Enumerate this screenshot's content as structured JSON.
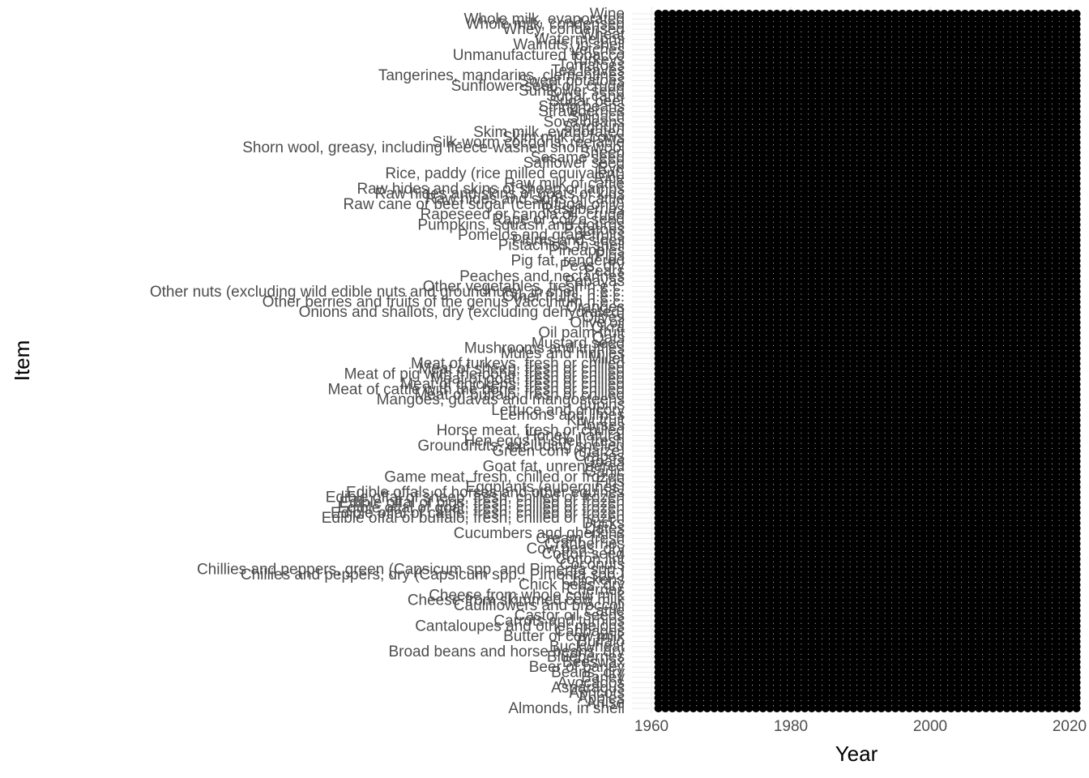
{
  "chart_data": {
    "type": "scatter",
    "title": "",
    "xlabel": "Year",
    "ylabel": "Item",
    "xlim": [
      1961,
      2021
    ],
    "x_ticks": [
      "1960",
      "1980",
      "2000",
      "2020"
    ],
    "grid": true,
    "legend": "none",
    "point_color": "#000000",
    "grid_color": "#ebebeb",
    "categories": [
      "Almonds, in shell",
      "Anise",
      "Apples",
      "Apricots",
      "Asparagus",
      "Avocados",
      "Barley",
      "Beans, dry",
      "Beer of barley",
      "Beeswax",
      "Blueberries",
      "Broad beans and horse beans, dry",
      "Buckwheat",
      "Buffalo",
      "Butter of cow milk",
      "Cabbages",
      "Cantaloupes and other melons",
      "Carrots and turnips",
      "Castor oil seeds",
      "Cattle",
      "Cauliflowers and broccoli",
      "Cheese from skimmed cow milk",
      "Cheese from whole cow milk",
      "Cherries",
      "Chick peas, dry",
      "Chickens",
      "Chillies and peppers, dry (Capsicum spp., Pimenta spp.)",
      "Chillies and peppers, green (Capsicum spp. and Pimenta spp.)",
      "Coconuts",
      "Cotton lint",
      "Cotton seed",
      "Cow peas, dry",
      "Cranberries",
      "Cream, fresh",
      "Cucumbers and gherkins",
      "Dates",
      "Ducks",
      "Edible offal of buffalo, fresh, chilled or frozen",
      "Edible offal of cattle, fresh, chilled or frozen",
      "Edible offal of goat, fresh, chilled or frozen",
      "Edible offal of pigs, fresh, chilled or frozen",
      "Edible offal of sheep, fresh, chilled or frozen",
      "Edible offals of horses and other equines",
      "Eggplants (aubergines)",
      "Figs",
      "Game meat, fresh, chilled or frozen",
      "Garlic",
      "Goat fat, unrendered",
      "Goats",
      "Grapes",
      "Green corn (maize)",
      "Groundnuts, excluding shelled",
      "Hen eggs in shell, fresh",
      "Honey, natural",
      "Horse meat, fresh or chilled",
      "Horses",
      "Kiwi fruit",
      "Lemons and limes",
      "Lettuce and chicory",
      "Lupins",
      "Mangoes, guavas and mangosteens",
      "Meat of buffalo, fresh or chilled",
      "Meat of cattle with the bone, fresh or chilled",
      "Meat of chickens, fresh or chilled",
      "Meat of goat, fresh or chilled",
      "Meat of pig with the bone, fresh or chilled",
      "Meat of sheep, fresh or chilled",
      "Meat of turkeys, fresh or chilled",
      "Millet",
      "Mules and hinnies",
      "Mushrooms and truffles",
      "Mustard seed",
      "Oats",
      "Oil palm fruit",
      "Okra",
      "Olive oil",
      "Olives",
      "Onions and shallots, dry (excluding dehydrated)",
      "Oranges",
      "Other berries and fruits of the genus Vaccinium n.e.c.",
      "Other fruits, n.e.c.",
      "Other nuts (excluding wild edible nuts and groundnuts), in shell, n.e.c.",
      "Other vegetables, fresh n.e.c.",
      "Papayas",
      "Peaches and nectarines",
      "Pears",
      "Peas, dry",
      "Pig fat, rendered",
      "Pigs",
      "Pineapples",
      "Pistachios, in shell",
      "Plums and sloes",
      "Pomelos and grapefruits",
      "Potatoes",
      "Pumpkins, squash and gourds",
      "Rape or colza seed",
      "Rapeseed or canola oil, crude",
      "Raspberries",
      "Raw cane or beet sugar (centrifugal only)",
      "Raw hides and skins of cattle",
      "Raw hides and skins of goats or kids",
      "Raw hides and skins of sheep or lambs",
      "Raw milk of cattle",
      "Rice",
      "Rice, paddy (rice milled equivalent)",
      "Rye",
      "Safflower seed",
      "Sesame seed",
      "Sheep",
      "Shorn wool, greasy, including fleece-washed shorn wool",
      "Silk-worm cocoons, reelable",
      "Skim milk of cows",
      "Skim milk, evaporated",
      "Sorghum",
      "Soya beans",
      "Spinach",
      "Strawberries",
      "String beans",
      "Sugar beet",
      "Sugar cane",
      "Sunflower seed",
      "Sunflower-seed oil, crude",
      "Sweet potatoes",
      "Tangerines, mandarins, clementines",
      "Tea leaves",
      "Tomatoes",
      "Turkeys",
      "Unmanufactured tobacco",
      "Vetches",
      "Walnuts, in shell",
      "Watermelons",
      "Wheat",
      "Whey, condensed",
      "Whole milk, condensed",
      "Whole milk, evaporated",
      "Wine"
    ],
    "series": [
      {
        "y_range": [
          "Almonds, in shell",
          "Wine"
        ],
        "x_start": 1961,
        "x_end": 2021
      }
    ]
  }
}
